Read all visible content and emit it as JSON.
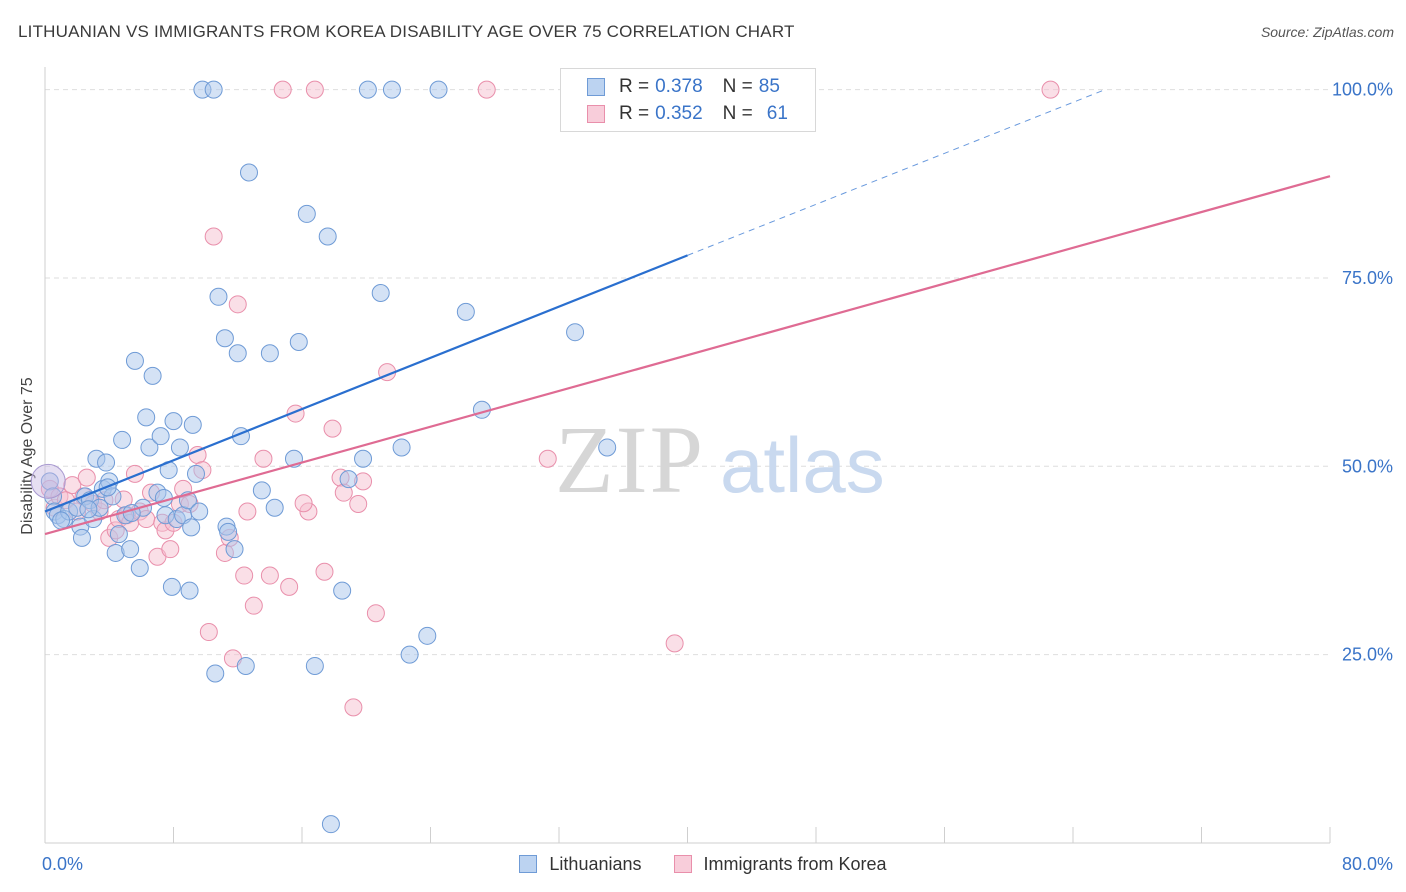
{
  "header": {
    "title": "LITHUANIAN VS IMMIGRANTS FROM KOREA DISABILITY AGE OVER 75 CORRELATION CHART",
    "source": "Source: ZipAtlas.com"
  },
  "watermark": {
    "zip": "ZIP",
    "atlas": "atlas"
  },
  "legend_top": [
    {
      "r_label": "R =",
      "r_value": "0.378",
      "n_label": "N =",
      "n_value": "85"
    },
    {
      "r_label": "R =",
      "r_value": "0.352",
      "n_label": "N =",
      "n_value": "61"
    }
  ],
  "colors": {
    "blue_fill": "#a9c6ec",
    "blue_stroke": "#6f9bd6",
    "blue_line": "#2a6fcf",
    "pink_fill": "#f6bfd0",
    "pink_stroke": "#e98fab",
    "pink_line": "#df6b93",
    "tick_label": "#3a74c8",
    "grid": "#dedede"
  },
  "chart_data": {
    "type": "scatter",
    "title": "LITHUANIAN VS IMMIGRANTS FROM KOREA DISABILITY AGE OVER 75 CORRELATION CHART",
    "xlabel": "",
    "ylabel": "Disability Age Over 75",
    "xlim": [
      0,
      80
    ],
    "ylim": [
      0,
      103
    ],
    "x_tick_labels": [
      {
        "value": 0,
        "label": "0.0%"
      },
      {
        "value": 80,
        "label": "80.0%"
      }
    ],
    "y_tick_labels": [
      {
        "value": 25,
        "label": "25.0%"
      },
      {
        "value": 50,
        "label": "50.0%"
      },
      {
        "value": 75,
        "label": "75.0%"
      },
      {
        "value": 100,
        "label": "100.0%"
      }
    ],
    "grid": true,
    "legend_position": "bottom",
    "series": [
      {
        "name": "Lithuanians",
        "points": [
          [
            0.3,
            48
          ],
          [
            0.5,
            46
          ],
          [
            0.6,
            44
          ],
          [
            0.8,
            43.5
          ],
          [
            1.2,
            43
          ],
          [
            1.5,
            44
          ],
          [
            2,
            44.5
          ],
          [
            2.2,
            42
          ],
          [
            2.3,
            40.5
          ],
          [
            2.5,
            46
          ],
          [
            2.8,
            45.5
          ],
          [
            3,
            43
          ],
          [
            3.2,
            51
          ],
          [
            3.4,
            44.5
          ],
          [
            3.6,
            47
          ],
          [
            3.8,
            50.5
          ],
          [
            4,
            48
          ],
          [
            4.2,
            46
          ],
          [
            4.4,
            38.5
          ],
          [
            4.6,
            41
          ],
          [
            4.8,
            53.5
          ],
          [
            5,
            43.5
          ],
          [
            5.3,
            39
          ],
          [
            5.6,
            64
          ],
          [
            5.9,
            36.5
          ],
          [
            6.1,
            44.5
          ],
          [
            6.3,
            56.5
          ],
          [
            6.5,
            52.5
          ],
          [
            6.7,
            62
          ],
          [
            7,
            46.5
          ],
          [
            7.2,
            54
          ],
          [
            7.5,
            43.5
          ],
          [
            7.7,
            49.5
          ],
          [
            7.9,
            34
          ],
          [
            8,
            56
          ],
          [
            8.2,
            43
          ],
          [
            8.4,
            52.5
          ],
          [
            8.6,
            43.5
          ],
          [
            8.9,
            45.5
          ],
          [
            9,
            33.5
          ],
          [
            9.2,
            55.5
          ],
          [
            9.4,
            49
          ],
          [
            9.6,
            44
          ],
          [
            9.8,
            100
          ],
          [
            10.5,
            100
          ],
          [
            10.6,
            22.5
          ],
          [
            10.8,
            72.5
          ],
          [
            11.2,
            67
          ],
          [
            11.3,
            42
          ],
          [
            11.8,
            39
          ],
          [
            12,
            65
          ],
          [
            12.2,
            54
          ],
          [
            12.5,
            23.5
          ],
          [
            12.7,
            89
          ],
          [
            14,
            65
          ],
          [
            14.3,
            44.5
          ],
          [
            15.5,
            51
          ],
          [
            15.8,
            66.5
          ],
          [
            16.3,
            83.5
          ],
          [
            16.8,
            23.5
          ],
          [
            17.6,
            80.5
          ],
          [
            17.8,
            2.5
          ],
          [
            18.5,
            33.5
          ],
          [
            19.8,
            51
          ],
          [
            20.1,
            100
          ],
          [
            20.9,
            73
          ],
          [
            21.6,
            100
          ],
          [
            22.2,
            52.5
          ],
          [
            22.7,
            25
          ],
          [
            23.8,
            27.5
          ],
          [
            24.5,
            100
          ],
          [
            26.2,
            70.5
          ],
          [
            27.2,
            57.5
          ],
          [
            33,
            67.8
          ],
          [
            35,
            52.5
          ],
          [
            38.5,
            100
          ],
          [
            1,
            42.8
          ],
          [
            2.7,
            44.3
          ],
          [
            3.9,
            47.2
          ],
          [
            5.4,
            43.8
          ],
          [
            7.4,
            45.8
          ],
          [
            9.1,
            41.9
          ],
          [
            13.5,
            46.8
          ],
          [
            18.9,
            48.3
          ],
          [
            11.4,
            41.3
          ]
        ]
      },
      {
        "name": "Immigrants from Korea",
        "points": [
          [
            0.3,
            47
          ],
          [
            0.6,
            44.5
          ],
          [
            0.9,
            46
          ],
          [
            1.3,
            45.5
          ],
          [
            1.7,
            47.5
          ],
          [
            2,
            44
          ],
          [
            2.4,
            46
          ],
          [
            2.6,
            48.5
          ],
          [
            3,
            45
          ],
          [
            3.4,
            44
          ],
          [
            3.7,
            45.5
          ],
          [
            4,
            40.5
          ],
          [
            4.4,
            41.5
          ],
          [
            4.6,
            43
          ],
          [
            5.1,
            43.5
          ],
          [
            5.3,
            42.5
          ],
          [
            5.6,
            49
          ],
          [
            5.9,
            44
          ],
          [
            6.3,
            43
          ],
          [
            6.6,
            46.5
          ],
          [
            7,
            38
          ],
          [
            7.3,
            42.5
          ],
          [
            7.5,
            41.5
          ],
          [
            7.8,
            39
          ],
          [
            8,
            42.5
          ],
          [
            8.4,
            45
          ],
          [
            8.6,
            47
          ],
          [
            9,
            45
          ],
          [
            9.5,
            51.5
          ],
          [
            9.8,
            49.5
          ],
          [
            10.2,
            28
          ],
          [
            10.5,
            80.5
          ],
          [
            11.2,
            38.5
          ],
          [
            11.5,
            40.5
          ],
          [
            11.7,
            24.5
          ],
          [
            12,
            71.5
          ],
          [
            12.4,
            35.5
          ],
          [
            12.6,
            44
          ],
          [
            13,
            31.5
          ],
          [
            13.6,
            51
          ],
          [
            14,
            35.5
          ],
          [
            14.8,
            100
          ],
          [
            15.2,
            34
          ],
          [
            15.6,
            57
          ],
          [
            16.4,
            44
          ],
          [
            16.8,
            100
          ],
          [
            17.4,
            36
          ],
          [
            17.9,
            55
          ],
          [
            18.4,
            48.5
          ],
          [
            18.6,
            46.5
          ],
          [
            19.2,
            18
          ],
          [
            19.5,
            45
          ],
          [
            19.8,
            48
          ],
          [
            20.6,
            30.5
          ],
          [
            21.3,
            62.5
          ],
          [
            27.5,
            100
          ],
          [
            31.3,
            51
          ],
          [
            39.2,
            26.5
          ],
          [
            62.6,
            100
          ],
          [
            4.9,
            45.6
          ],
          [
            16.1,
            45.1
          ]
        ]
      }
    ],
    "trendlines": [
      {
        "series": "Lithuanians",
        "x1": 0,
        "y1": 44,
        "x2": 40,
        "y2": 78,
        "dashed_to_x": 66,
        "dashed_to_y": 100
      },
      {
        "series": "Immigrants from Korea",
        "x1": 0,
        "y1": 41,
        "x2": 80,
        "y2": 88.5
      }
    ]
  }
}
